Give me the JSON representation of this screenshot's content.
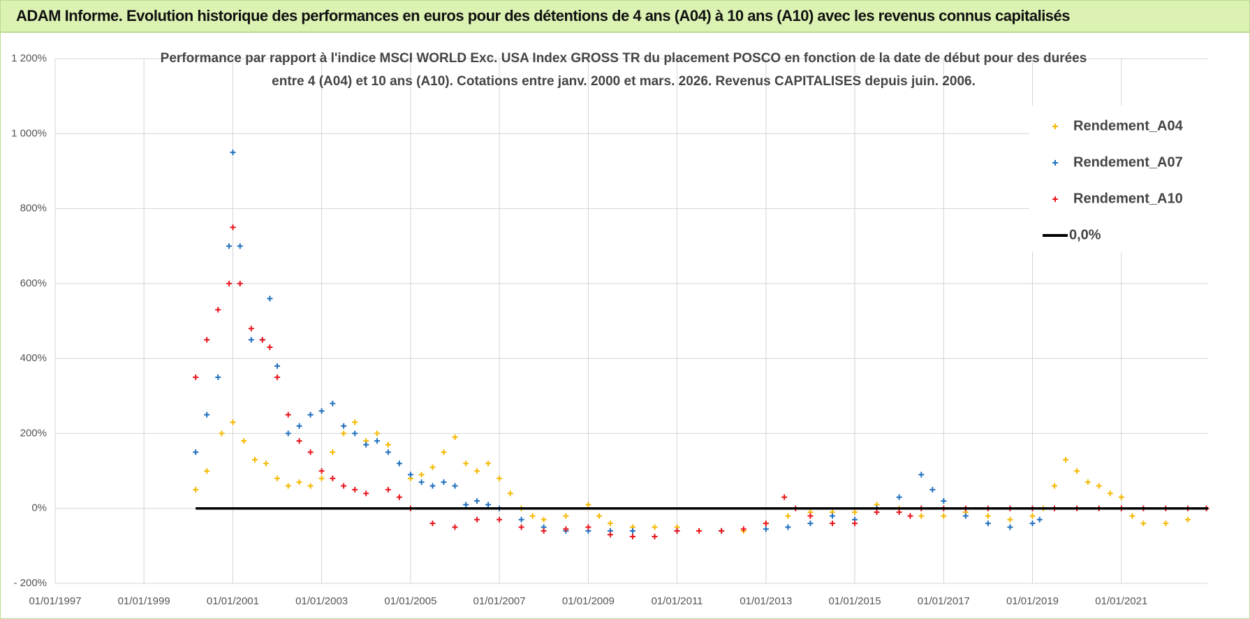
{
  "header": {
    "title": "ADAM Informe. Evolution historique des performances en euros pour des détentions de 4 ans (A04) à 10 ans (A10) avec les revenus connus capitalisés"
  },
  "chart_data": {
    "type": "scatter",
    "title": "Performance par rapport à l'indice MSCI WORLD Exc. USA Index GROSS TR  du placement POSCO en fonction de la date de début pour des durées",
    "subtitle": "entre 4 (A04) et 10 ans (A10). Cotations entre janv. 2000 et mars. 2026. Revenus CAPITALISES depuis juin. 2006.",
    "xlim": [
      "1997-01-01",
      "2022-12-15"
    ],
    "xticks": [
      {
        "value": "1997-01-01",
        "label": "01/01/1997"
      },
      {
        "value": "1999-01-01",
        "label": "01/01/1999"
      },
      {
        "value": "2001-01-01",
        "label": "01/01/2001"
      },
      {
        "value": "2003-01-01",
        "label": "01/01/2003"
      },
      {
        "value": "2005-01-01",
        "label": "01/01/2005"
      },
      {
        "value": "2007-01-01",
        "label": "01/01/2007"
      },
      {
        "value": "2009-01-01",
        "label": "01/01/2009"
      },
      {
        "value": "2011-01-01",
        "label": "01/01/2011"
      },
      {
        "value": "2013-01-01",
        "label": "01/01/2013"
      },
      {
        "value": "2015-01-01",
        "label": "01/01/2015"
      },
      {
        "value": "2017-01-01",
        "label": "01/01/2017"
      },
      {
        "value": "2019-01-01",
        "label": "01/01/2019"
      },
      {
        "value": "2021-01-01",
        "label": "01/01/2021"
      }
    ],
    "ylim": [
      -200,
      1200
    ],
    "yticks": [
      {
        "value": -200,
        "label": "- 200%"
      },
      {
        "value": 0,
        "label": "0%"
      },
      {
        "value": 200,
        "label": "200%"
      },
      {
        "value": 400,
        "label": "400%"
      },
      {
        "value": 600,
        "label": "600%"
      },
      {
        "value": 800,
        "label": "800%"
      },
      {
        "value": 1000,
        "label": "1 000%"
      },
      {
        "value": 1200,
        "label": "1 200%"
      }
    ],
    "grid": true,
    "legend": "right",
    "series": [
      {
        "name": "Rendement_A04",
        "color": "#f5b800",
        "mode": "markers",
        "x": [
          "2000-03-01",
          "2000-06-01",
          "2000-10-01",
          "2001-01-01",
          "2001-04-01",
          "2001-07-01",
          "2001-10-01",
          "2002-01-01",
          "2002-04-01",
          "2002-07-01",
          "2002-10-01",
          "2003-01-01",
          "2003-04-01",
          "2003-07-01",
          "2003-10-01",
          "2004-01-01",
          "2004-04-01",
          "2004-07-01",
          "2005-01-01",
          "2005-04-01",
          "2005-07-01",
          "2005-10-01",
          "2006-01-01",
          "2006-04-01",
          "2006-07-01",
          "2006-10-01",
          "2007-01-01",
          "2007-04-01",
          "2007-07-01",
          "2007-10-01",
          "2008-01-01",
          "2008-07-01",
          "2009-01-01",
          "2009-04-01",
          "2009-07-01",
          "2010-01-01",
          "2010-07-01",
          "2011-01-01",
          "2011-07-01",
          "2012-01-01",
          "2012-07-01",
          "2013-01-01",
          "2013-07-01",
          "2014-01-01",
          "2014-07-01",
          "2015-01-01",
          "2015-07-01",
          "2016-01-01",
          "2016-07-01",
          "2017-01-01",
          "2017-07-01",
          "2018-01-01",
          "2018-07-01",
          "2019-01-01",
          "2019-04-01",
          "2019-07-01",
          "2019-10-01",
          "2020-01-01",
          "2020-04-01",
          "2020-07-01",
          "2020-10-01",
          "2021-01-01",
          "2021-04-01",
          "2021-07-01",
          "2022-01-01",
          "2022-07-01"
        ],
        "values": [
          50,
          100,
          200,
          230,
          180,
          130,
          120,
          80,
          60,
          70,
          60,
          80,
          150,
          200,
          230,
          180,
          200,
          170,
          80,
          90,
          110,
          150,
          190,
          120,
          100,
          120,
          80,
          40,
          0,
          -20,
          -30,
          -20,
          10,
          -20,
          -40,
          -50,
          -50,
          -50,
          -60,
          -60,
          -60,
          -40,
          -20,
          -10,
          -10,
          -10,
          10,
          0,
          -20,
          -20,
          -10,
          -20,
          -30,
          -20,
          0,
          60,
          130,
          100,
          70,
          60,
          40,
          30,
          -20,
          -40,
          -40,
          -30
        ]
      },
      {
        "name": "Rendement_A07",
        "color": "#1f6fbf",
        "mode": "markers",
        "x": [
          "2000-03-01",
          "2000-06-01",
          "2000-09-01",
          "2000-12-01",
          "2001-01-01",
          "2001-03-01",
          "2001-06-01",
          "2001-09-01",
          "2001-11-01",
          "2002-01-01",
          "2002-04-01",
          "2002-07-01",
          "2002-10-01",
          "2003-01-01",
          "2003-04-01",
          "2003-07-01",
          "2003-10-01",
          "2004-01-01",
          "2004-04-01",
          "2004-07-01",
          "2004-10-01",
          "2005-01-01",
          "2005-04-01",
          "2005-07-01",
          "2005-10-01",
          "2006-01-01",
          "2006-04-01",
          "2006-07-01",
          "2006-10-01",
          "2007-01-01",
          "2007-07-01",
          "2008-01-01",
          "2008-07-01",
          "2009-01-01",
          "2009-07-01",
          "2010-01-01",
          "2011-01-01",
          "2012-01-01",
          "2013-01-01",
          "2013-07-01",
          "2014-01-01",
          "2014-07-01",
          "2015-01-01",
          "2015-07-01",
          "2016-01-01",
          "2016-07-01",
          "2016-10-01",
          "2017-01-01",
          "2017-07-01",
          "2018-01-01",
          "2018-07-01",
          "2019-01-01",
          "2019-03-01"
        ],
        "values": [
          150,
          250,
          350,
          700,
          950,
          700,
          450,
          450,
          560,
          380,
          200,
          220,
          250,
          260,
          280,
          220,
          200,
          170,
          180,
          150,
          120,
          90,
          70,
          60,
          70,
          60,
          10,
          20,
          10,
          0,
          -30,
          -50,
          -60,
          -60,
          -60,
          -60,
          -60,
          -60,
          -55,
          -50,
          -40,
          -20,
          -30,
          0,
          30,
          90,
          50,
          20,
          -20,
          -40,
          -50,
          -40,
          -30
        ]
      },
      {
        "name": "Rendement_A10",
        "color": "#e8141c",
        "mode": "markers",
        "x": [
          "2000-03-01",
          "2000-06-01",
          "2000-09-01",
          "2000-12-01",
          "2001-01-01",
          "2001-03-01",
          "2001-06-01",
          "2001-09-01",
          "2001-11-01",
          "2002-01-01",
          "2002-04-01",
          "2002-07-01",
          "2002-10-01",
          "2003-01-01",
          "2003-04-01",
          "2003-07-01",
          "2003-10-01",
          "2004-01-01",
          "2004-07-01",
          "2004-10-01",
          "2005-01-01",
          "2005-07-01",
          "2006-01-01",
          "2006-07-01",
          "2007-01-01",
          "2007-07-01",
          "2008-01-01",
          "2008-07-01",
          "2009-01-01",
          "2009-07-01",
          "2010-01-01",
          "2010-07-01",
          "2011-01-01",
          "2011-07-01",
          "2012-01-01",
          "2012-07-01",
          "2013-01-01",
          "2013-06-01",
          "2013-09-01",
          "2014-01-01",
          "2014-07-01",
          "2015-01-01",
          "2015-07-01",
          "2016-01-01",
          "2016-04-01",
          "2016-07-01",
          "2017-01-01",
          "2017-07-01",
          "2018-01-01",
          "2018-07-01",
          "2019-01-01",
          "2019-07-01",
          "2020-01-01",
          "2020-07-01",
          "2021-01-01",
          "2021-07-01",
          "2022-01-01",
          "2022-07-01",
          "2022-12-01"
        ],
        "values": [
          350,
          450,
          530,
          600,
          750,
          600,
          480,
          450,
          430,
          350,
          250,
          180,
          150,
          100,
          80,
          60,
          50,
          40,
          50,
          30,
          0,
          -40,
          -50,
          -30,
          -30,
          -50,
          -60,
          -55,
          -50,
          -70,
          -75,
          -75,
          -60,
          -60,
          -60,
          -55,
          -40,
          30,
          0,
          -20,
          -40,
          -40,
          -10,
          -10,
          -20,
          0,
          0,
          0,
          0,
          0,
          0,
          0,
          0,
          0,
          0,
          0,
          0,
          0,
          0
        ]
      },
      {
        "name": "0,0%",
        "color": "#000000",
        "mode": "line",
        "x": [
          "2000-03-01",
          "2022-12-15"
        ],
        "values": [
          0,
          0
        ]
      }
    ]
  }
}
